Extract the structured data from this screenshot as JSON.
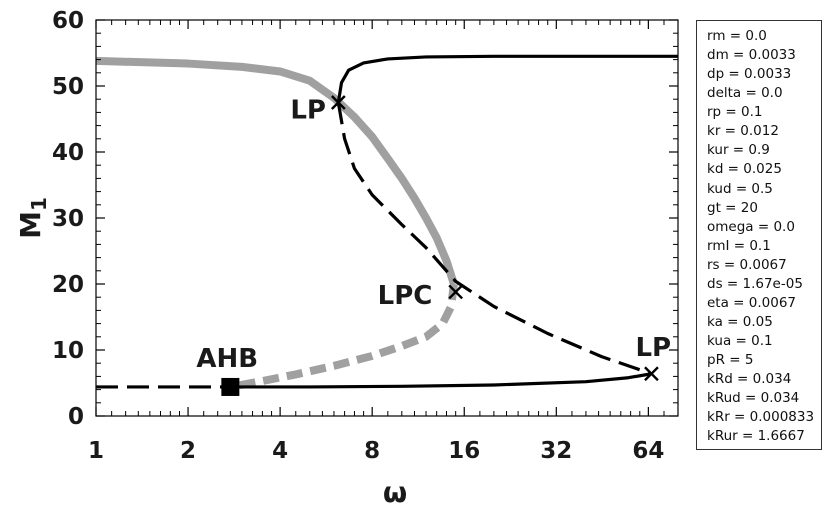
{
  "chart_data": {
    "type": "line",
    "title": "",
    "xlabel": "ω",
    "ylabel": "M",
    "ylabel_subscript": "1",
    "x_scale": "log2",
    "xlim": [
      1,
      80
    ],
    "ylim": [
      0,
      60
    ],
    "x_ticks": [
      {
        "value": 1,
        "label": "1"
      },
      {
        "value": 2,
        "label": "2"
      },
      {
        "value": 4,
        "label": "4"
      },
      {
        "value": 8,
        "label": "8"
      },
      {
        "value": 16,
        "label": "16"
      },
      {
        "value": 32,
        "label": "32"
      },
      {
        "value": 64,
        "label": "64"
      }
    ],
    "y_ticks": [
      {
        "value": 0,
        "label": "0"
      },
      {
        "value": 10,
        "label": "10"
      },
      {
        "value": 20,
        "label": "20"
      },
      {
        "value": 30,
        "label": "30"
      },
      {
        "value": 40,
        "label": "40"
      },
      {
        "value": 50,
        "label": "50"
      },
      {
        "value": 60,
        "label": "60"
      }
    ],
    "grid": false,
    "legend": "none",
    "colors": {
      "equilibrium": "#000000",
      "periodic": "#a0a0a0"
    },
    "series": [
      {
        "style": "solid",
        "color": "#000000",
        "points": [
          [
            6.2,
            47.5
          ],
          [
            6.35,
            50.5
          ],
          [
            6.7,
            52.4
          ],
          [
            7.5,
            53.5
          ],
          [
            9,
            54.1
          ],
          [
            12,
            54.4
          ],
          [
            20,
            54.5
          ],
          [
            40,
            54.5
          ],
          [
            80,
            54.5
          ]
        ]
      },
      {
        "style": "dashed",
        "color": "#000000",
        "points": [
          [
            6.2,
            47.5
          ],
          [
            6.5,
            42
          ],
          [
            7,
            37.5
          ],
          [
            8,
            33.5
          ],
          [
            10,
            29
          ],
          [
            12,
            25.5
          ],
          [
            15,
            20.4
          ],
          [
            20,
            16.6
          ],
          [
            30,
            12.5
          ],
          [
            45,
            9
          ],
          [
            65.5,
            6.4
          ]
        ]
      },
      {
        "style": "solid",
        "color": "#000000",
        "points": [
          [
            2.75,
            4.4
          ],
          [
            5,
            4.4
          ],
          [
            10,
            4.5
          ],
          [
            20,
            4.7
          ],
          [
            40,
            5.2
          ],
          [
            55,
            5.8
          ],
          [
            65.5,
            6.4
          ]
        ]
      },
      {
        "style": "dashed",
        "color": "#000000",
        "points": [
          [
            1,
            4.4
          ],
          [
            2.75,
            4.4
          ]
        ]
      },
      {
        "style": "thick-solid",
        "color": "#a0a0a0",
        "points": [
          [
            1,
            53.8
          ],
          [
            2,
            53.4
          ],
          [
            3,
            52.9
          ],
          [
            4,
            52.2
          ],
          [
            5,
            50.8
          ],
          [
            6,
            48.2
          ],
          [
            7,
            45.3
          ],
          [
            8,
            42.3
          ],
          [
            9,
            39
          ],
          [
            10,
            36
          ],
          [
            11,
            33
          ],
          [
            12,
            30
          ],
          [
            13,
            27
          ],
          [
            14,
            23.5
          ],
          [
            14.8,
            20
          ]
        ]
      },
      {
        "style": "thick-dashed",
        "color": "#a0a0a0",
        "points": [
          [
            14.8,
            20
          ],
          [
            14.5,
            16.6
          ],
          [
            13.6,
            14
          ],
          [
            12,
            12
          ],
          [
            10,
            10.6
          ],
          [
            8,
            9.1
          ],
          [
            6,
            7.6
          ],
          [
            4.5,
            6.3
          ],
          [
            3.5,
            5.3
          ],
          [
            2.75,
            4.4
          ]
        ]
      }
    ],
    "markers": [
      {
        "type": "x",
        "label": "LP",
        "x": 6.2,
        "y": 47.5
      },
      {
        "type": "x",
        "label": "LPC",
        "x": 15,
        "y": 18.8
      },
      {
        "type": "x",
        "label": "LP",
        "x": 65.5,
        "y": 6.4
      },
      {
        "type": "square",
        "label": "AHB",
        "x": 2.75,
        "y": 4.4
      }
    ]
  },
  "parameters": [
    "rm = 0.0",
    "dm = 0.0033",
    "dp = 0.0033",
    "delta = 0.0",
    "rp = 0.1",
    "kr = 0.012",
    "kur = 0.9",
    "kd = 0.025",
    "kud = 0.5",
    "gt = 20",
    "omega = 0.0",
    "rmI = 0.1",
    "rs = 0.0067",
    "ds = 1.67e-05",
    "eta = 0.0067",
    "ka = 0.05",
    "kua = 0.1",
    "pR = 5",
    "kRd = 0.034",
    "kRud = 0.034",
    "kRr = 0.000833",
    "kRur = 1.6667"
  ]
}
